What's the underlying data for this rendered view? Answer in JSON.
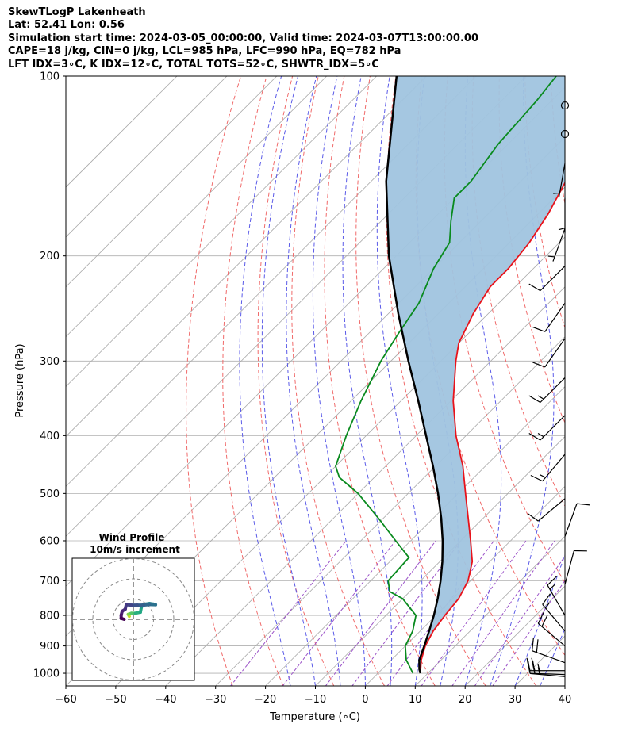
{
  "header": {
    "line1": "SkewTLogP Lakenheath",
    "line2": "Lat: 52.41   Lon: 0.56",
    "line3": "Simulation start time: 2024-03-05_00:00:00, Valid time: 2024-03-07T13:00:00.00",
    "line4": "CAPE=18 j/kg, CIN=0 j/kg, LCL=985 hPa, LFC=990 hPa, EQ=782 hPa",
    "line5": "LFT IDX=3∘C, K IDX=12∘C, TOTAL TOTS=52∘C, SHWTR_IDX=5∘C"
  },
  "chart_data": {
    "type": "skewt-logp",
    "xlabel": "Temperature (∘C)",
    "ylabel": "Pressure (hPa)",
    "xlim": [
      -60,
      40
    ],
    "ylim": [
      1050,
      100
    ],
    "skew": 45,
    "x_ticks": [
      "−60",
      "−50",
      "−40",
      "−30",
      "−20",
      "−10",
      "0",
      "10",
      "20",
      "30",
      "40"
    ],
    "y_ticks": [
      "100",
      "200",
      "300",
      "400",
      "500",
      "600",
      "700",
      "800",
      "900",
      "1000"
    ],
    "temperature": [
      {
        "p": 1000,
        "t": 8.5
      },
      {
        "p": 950,
        "t": 6.0
      },
      {
        "p": 900,
        "t": 4.0
      },
      {
        "p": 850,
        "t": 2.6
      },
      {
        "p": 800,
        "t": 1.8
      },
      {
        "p": 750,
        "t": 1.2
      },
      {
        "p": 700,
        "t": -0.5
      },
      {
        "p": 650,
        "t": -3.5
      },
      {
        "p": 600,
        "t": -8.0
      },
      {
        "p": 550,
        "t": -13.0
      },
      {
        "p": 500,
        "t": -18.5
      },
      {
        "p": 450,
        "t": -24.5
      },
      {
        "p": 400,
        "t": -32.0
      },
      {
        "p": 350,
        "t": -39.5
      },
      {
        "p": 300,
        "t": -47.0
      },
      {
        "p": 280,
        "t": -50.0
      },
      {
        "p": 250,
        "t": -53.0
      },
      {
        "p": 225,
        "t": -55.0
      },
      {
        "p": 210,
        "t": -55.0
      },
      {
        "p": 190,
        "t": -56.0
      },
      {
        "p": 170,
        "t": -58.0
      },
      {
        "p": 150,
        "t": -61.0
      },
      {
        "p": 140,
        "t": -64.0
      },
      {
        "p": 130,
        "t": -66.0
      },
      {
        "p": 120,
        "t": -68.0
      },
      {
        "p": 110,
        "t": -70.0
      },
      {
        "p": 100,
        "t": -72.0
      }
    ],
    "dewpoint": [
      {
        "p": 1000,
        "t": 7.0
      },
      {
        "p": 950,
        "t": 3.0
      },
      {
        "p": 900,
        "t": 0.0
      },
      {
        "p": 850,
        "t": -1.5
      },
      {
        "p": 800,
        "t": -4.0
      },
      {
        "p": 750,
        "t": -10.0
      },
      {
        "p": 730,
        "t": -14.0
      },
      {
        "p": 700,
        "t": -16.5
      },
      {
        "p": 640,
        "t": -17.0
      },
      {
        "p": 600,
        "t": -23.0
      },
      {
        "p": 550,
        "t": -31.0
      },
      {
        "p": 500,
        "t": -40.0
      },
      {
        "p": 470,
        "t": -47.0
      },
      {
        "p": 450,
        "t": -50.0
      },
      {
        "p": 400,
        "t": -54.0
      },
      {
        "p": 350,
        "t": -58.0
      },
      {
        "p": 300,
        "t": -62.0
      },
      {
        "p": 270,
        "t": -64.0
      },
      {
        "p": 240,
        "t": -66.0
      },
      {
        "p": 210,
        "t": -70.0
      },
      {
        "p": 190,
        "t": -72.0
      },
      {
        "p": 175,
        "t": -76.0
      },
      {
        "p": 160,
        "t": -80.0
      },
      {
        "p": 150,
        "t": -80.0
      },
      {
        "p": 130,
        "t": -82.0
      },
      {
        "p": 110,
        "t": -83.0
      },
      {
        "p": 100,
        "t": -84.0
      }
    ],
    "parcel": [
      {
        "p": 1000,
        "t": 8.5
      },
      {
        "p": 985,
        "t": 7.5
      },
      {
        "p": 950,
        "t": 5.6
      },
      {
        "p": 900,
        "t": 3.8
      },
      {
        "p": 850,
        "t": 1.8
      },
      {
        "p": 800,
        "t": -0.4
      },
      {
        "p": 750,
        "t": -3.0
      },
      {
        "p": 700,
        "t": -6.0
      },
      {
        "p": 650,
        "t": -9.5
      },
      {
        "p": 600,
        "t": -13.6
      },
      {
        "p": 550,
        "t": -18.4
      },
      {
        "p": 500,
        "t": -24.0
      },
      {
        "p": 450,
        "t": -30.5
      },
      {
        "p": 400,
        "t": -38.0
      },
      {
        "p": 350,
        "t": -46.5
      },
      {
        "p": 300,
        "t": -56.5
      },
      {
        "p": 250,
        "t": -68.0
      },
      {
        "p": 200,
        "t": -81.5
      },
      {
        "p": 150,
        "t": -97.0
      },
      {
        "p": 100,
        "t": -116.0
      }
    ],
    "cape_fill_color": "#a0c4df",
    "colors": {
      "temperature": "#e8131b",
      "dewpoint": "#098a1e",
      "parcel": "#000000",
      "dry_adiabat": "#f06a6a",
      "moist_adiabat": "#5a5ae8",
      "mixing_ratio": "#9b52c8",
      "isotherm": "#a9a9a9",
      "isobar": "#b0b0b0"
    },
    "wind_barbs": [
      {
        "p": 1013,
        "speed_kt": 25,
        "dir": 275
      },
      {
        "p": 1005,
        "speed_kt": 25,
        "dir": 272
      },
      {
        "p": 990,
        "speed_kt": 25,
        "dir": 270
      },
      {
        "p": 960,
        "speed_kt": 20,
        "dir": 290
      },
      {
        "p": 900,
        "speed_kt": 20,
        "dir": 310
      },
      {
        "p": 850,
        "speed_kt": 15,
        "dir": 320
      },
      {
        "p": 800,
        "speed_kt": 15,
        "dir": 330
      },
      {
        "p": 710,
        "speed_kt": 10,
        "dir": 15
      },
      {
        "p": 590,
        "speed_kt": 10,
        "dir": 20
      },
      {
        "p": 510,
        "speed_kt": 10,
        "dir": 230
      },
      {
        "p": 430,
        "speed_kt": 15,
        "dir": 220
      },
      {
        "p": 370,
        "speed_kt": 15,
        "dir": 225
      },
      {
        "p": 320,
        "speed_kt": 15,
        "dir": 225
      },
      {
        "p": 275,
        "speed_kt": 10,
        "dir": 215
      },
      {
        "p": 240,
        "speed_kt": 10,
        "dir": 215
      },
      {
        "p": 208,
        "speed_kt": 10,
        "dir": 225
      },
      {
        "p": 180,
        "speed_kt": 5,
        "dir": 200
      },
      {
        "p": 160,
        "speed_kt": 5,
        "dir": 180
      },
      {
        "p": 140,
        "speed_kt": 5,
        "dir": 190
      },
      {
        "p": 125,
        "speed_kt": 0,
        "dir": 0
      },
      {
        "p": 112,
        "speed_kt": 0,
        "dir": 0
      }
    ],
    "hodograph": {
      "title": "Wind Profile",
      "subtitle": "10m/s increment",
      "points": [
        {
          "u": -2,
          "v": 1.5,
          "c": "#fde725"
        },
        {
          "u": -2.5,
          "v": 2.5,
          "c": "#c9e020"
        },
        {
          "u": -1,
          "v": 3,
          "c": "#7ad151"
        },
        {
          "u": 1,
          "v": 3,
          "c": "#52c569"
        },
        {
          "u": 3.5,
          "v": 3.5,
          "c": "#2ab07f"
        },
        {
          "u": 4,
          "v": 6,
          "c": "#22a884"
        },
        {
          "u": 4.5,
          "v": 7,
          "c": "#1f9a8a"
        },
        {
          "u": 6,
          "v": 7.5,
          "c": "#21918c"
        },
        {
          "u": 8,
          "v": 7.8,
          "c": "#24878e"
        },
        {
          "u": 10,
          "v": 7.5,
          "c": "#26828e"
        },
        {
          "u": 11,
          "v": 7.2,
          "c": "#2a788e"
        },
        {
          "u": 8,
          "v": 7.3,
          "c": "#2c728e"
        },
        {
          "u": 5,
          "v": 7,
          "c": "#31688e"
        },
        {
          "u": 2,
          "v": 7,
          "c": "#355f8d"
        },
        {
          "u": -1,
          "v": 7,
          "c": "#3b528b"
        },
        {
          "u": -3.5,
          "v": 7.2,
          "c": "#414487"
        },
        {
          "u": -4,
          "v": 5,
          "c": "#443983"
        },
        {
          "u": -5.5,
          "v": 4,
          "c": "#472d7b"
        },
        {
          "u": -6,
          "v": 2,
          "c": "#482173"
        },
        {
          "u": -6,
          "v": 0.5,
          "c": "#481467"
        },
        {
          "u": -4.5,
          "v": 0,
          "c": "#440154"
        }
      ]
    }
  }
}
